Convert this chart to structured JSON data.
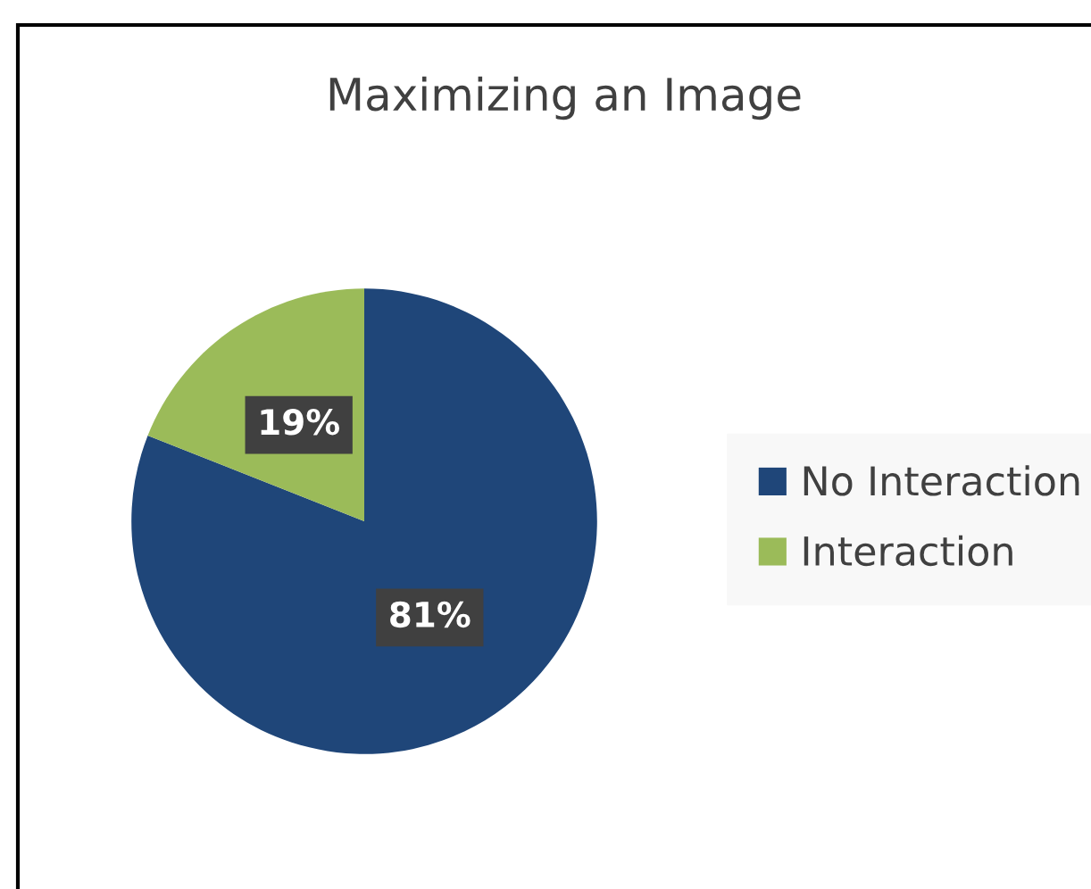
{
  "chart_data": {
    "type": "pie",
    "title": "Maximizing an Image",
    "categories": [
      "No Interaction",
      "Interaction"
    ],
    "values": [
      81,
      19
    ],
    "colors": [
      "#1f4679",
      "#9bbb59"
    ],
    "value_labels": [
      "81%",
      "19%"
    ],
    "legend": "right"
  }
}
